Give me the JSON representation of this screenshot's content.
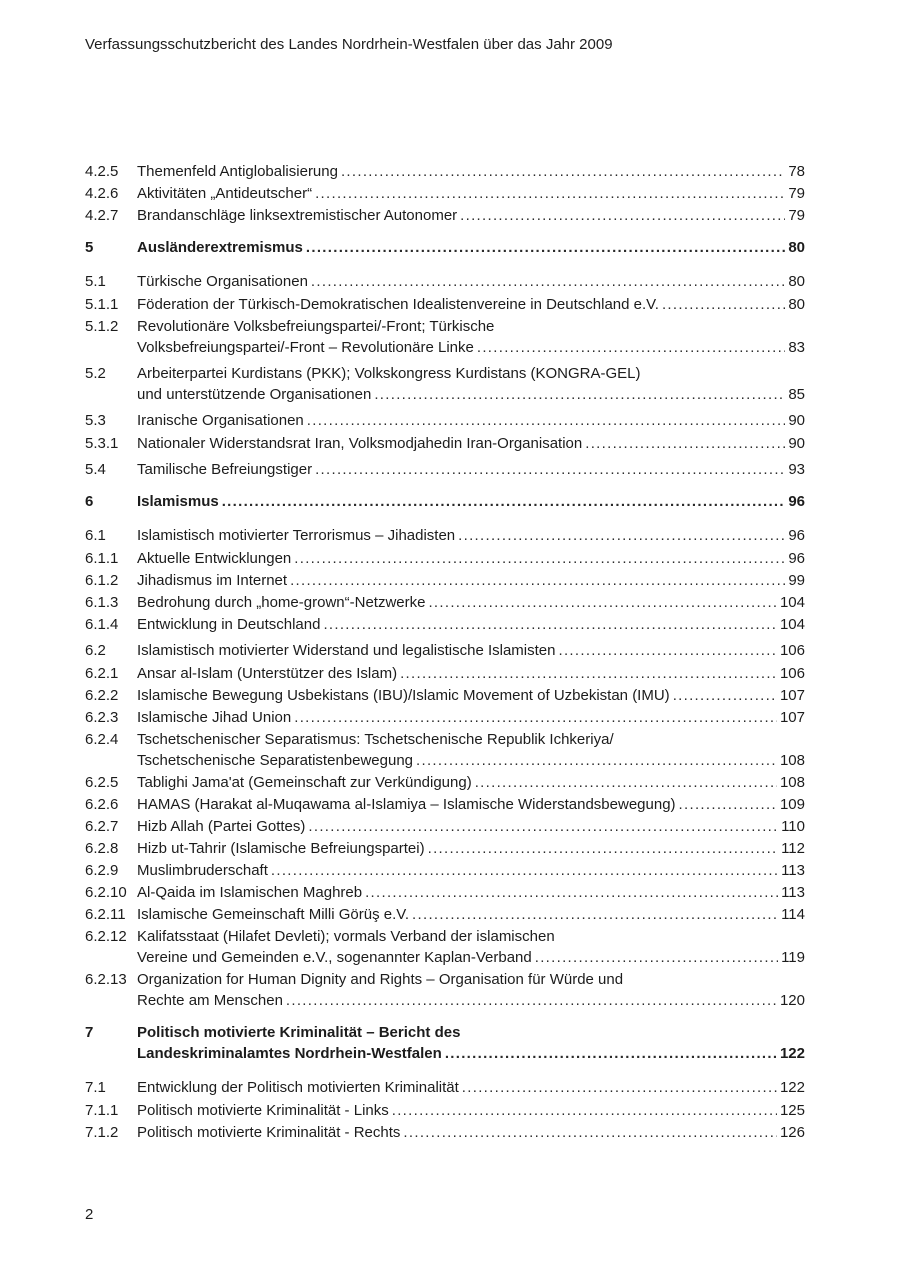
{
  "document": {
    "running_header": "Verfassungsschutzbericht des Landes Nordrhein-Westfalen über das Jahr 2009",
    "page_number": "2"
  },
  "toc": {
    "entries": [
      {
        "num": "4.2.5",
        "level": "sub",
        "lines": [
          "Themenfeld Antiglobalisierung"
        ],
        "page": "78"
      },
      {
        "num": "4.2.6",
        "level": "sub",
        "lines": [
          "Aktivitäten „Antideutscher“"
        ],
        "page": "79"
      },
      {
        "num": "4.2.7",
        "level": "sub",
        "lines": [
          "Brandanschläge linksextremistischer Autonomer"
        ],
        "page": "79"
      },
      {
        "num": "5",
        "level": "chapter",
        "lines": [
          "Ausländerextremismus"
        ],
        "page": "80"
      },
      {
        "num": "5.1",
        "level": "section",
        "lines": [
          "Türkische Organisationen"
        ],
        "page": "80"
      },
      {
        "num": "5.1.1",
        "level": "sub",
        "lines": [
          "Föderation der Türkisch-Demokratischen Idealistenvereine in Deutschland e.V."
        ],
        "page": "80"
      },
      {
        "num": "5.1.2",
        "level": "sub",
        "lines": [
          "Revolutionäre Volksbefreiungspartei/-Front; Türkische",
          "Volksbefreiungspartei/-Front – Revolutionäre Linke"
        ],
        "page": "83"
      },
      {
        "num": "5.2",
        "level": "section",
        "lines": [
          "Arbeiterpartei Kurdistans (PKK); Volkskongress Kurdistans (KONGRA-GEL)",
          "und unterstützende Organisationen"
        ],
        "page": "85"
      },
      {
        "num": "5.3",
        "level": "section",
        "lines": [
          "Iranische Organisationen"
        ],
        "page": "90"
      },
      {
        "num": "5.3.1",
        "level": "sub",
        "lines": [
          "Nationaler Widerstandsrat Iran, Volksmodjahedin Iran-Organisation"
        ],
        "page": "90"
      },
      {
        "num": "5.4",
        "level": "section",
        "lines": [
          "Tamilische Befreiungstiger"
        ],
        "page": "93"
      },
      {
        "num": "6",
        "level": "chapter",
        "lines": [
          "Islamismus"
        ],
        "page": "96"
      },
      {
        "num": "6.1",
        "level": "section",
        "lines": [
          "Islamistisch motivierter Terrorismus – Jihadisten"
        ],
        "page": "96"
      },
      {
        "num": "6.1.1",
        "level": "sub",
        "lines": [
          "Aktuelle Entwicklungen"
        ],
        "page": "96"
      },
      {
        "num": "6.1.2",
        "level": "sub",
        "lines": [
          "Jihadismus im Internet"
        ],
        "page": "99"
      },
      {
        "num": "6.1.3",
        "level": "sub",
        "lines": [
          "Bedrohung durch „home-grown“-Netzwerke"
        ],
        "page": "104"
      },
      {
        "num": "6.1.4",
        "level": "sub",
        "lines": [
          "Entwicklung in Deutschland"
        ],
        "page": "104"
      },
      {
        "num": "6.2",
        "level": "section",
        "lines": [
          "Islamistisch motivierter Widerstand und legalistische Islamisten"
        ],
        "page": "106"
      },
      {
        "num": "6.2.1",
        "level": "sub",
        "lines": [
          "Ansar al-Islam (Unterstützer des Islam)"
        ],
        "page": "106"
      },
      {
        "num": "6.2.2",
        "level": "sub",
        "lines": [
          "Islamische Bewegung Usbekistans (IBU)/Islamic Movement of Uzbekistan (IMU)"
        ],
        "page": "107"
      },
      {
        "num": "6.2.3",
        "level": "sub",
        "lines": [
          "Islamische Jihad Union"
        ],
        "page": "107"
      },
      {
        "num": "6.2.4",
        "level": "sub",
        "lines": [
          "Tschetschenischer Separatismus: Tschetschenische Republik Ichkeriya/",
          "Tschetschenische Separatistenbewegung"
        ],
        "page": "108"
      },
      {
        "num": "6.2.5",
        "level": "sub",
        "lines": [
          "Tablighi Jama'at (Gemeinschaft zur Verkündigung)"
        ],
        "page": "108"
      },
      {
        "num": "6.2.6",
        "level": "sub",
        "lines": [
          "HAMAS (Harakat al-Muqawama al-Islamiya – Islamische Widerstandsbewegung)"
        ],
        "page": "109"
      },
      {
        "num": "6.2.7",
        "level": "sub",
        "lines": [
          "Hizb Allah (Partei Gottes)"
        ],
        "page": "110"
      },
      {
        "num": "6.2.8",
        "level": "sub",
        "lines": [
          "Hizb ut-Tahrir (Islamische Befreiungspartei)"
        ],
        "page": "112"
      },
      {
        "num": "6.2.9",
        "level": "sub",
        "lines": [
          "Muslimbruderschaft"
        ],
        "page": "113"
      },
      {
        "num": "6.2.10",
        "level": "sub",
        "lines": [
          "Al-Qaida im Islamischen Maghreb"
        ],
        "page": "113"
      },
      {
        "num": "6.2.11",
        "level": "sub",
        "lines": [
          "Islamische Gemeinschaft Milli Görüş e.V."
        ],
        "page": "114"
      },
      {
        "num": "6.2.12",
        "level": "sub",
        "lines": [
          "Kalifatsstaat (Hilafet Devleti); vormals Verband der islamischen",
          "Vereine und Gemeinden e.V., sogenannter Kaplan-Verband"
        ],
        "page": "119"
      },
      {
        "num": "6.2.13",
        "level": "sub",
        "lines": [
          "Organization for Human Dignity and Rights – Organisation für Würde und",
          "Rechte am Menschen"
        ],
        "page": "120"
      },
      {
        "num": "7",
        "level": "chapter",
        "lines": [
          "Politisch motivierte Kriminalität – Bericht des",
          "Landeskriminalamtes Nordrhein-Westfalen"
        ],
        "page": "122"
      },
      {
        "num": "7.1",
        "level": "section",
        "lines": [
          "Entwicklung der Politisch motivierten Kriminalität"
        ],
        "page": "122"
      },
      {
        "num": "7.1.1",
        "level": "sub",
        "lines": [
          "Politisch motivierte Kriminalität - Links"
        ],
        "page": "125"
      },
      {
        "num": "7.1.2",
        "level": "sub",
        "lines": [
          "Politisch motivierte Kriminalität - Rechts"
        ],
        "page": "126"
      }
    ]
  }
}
